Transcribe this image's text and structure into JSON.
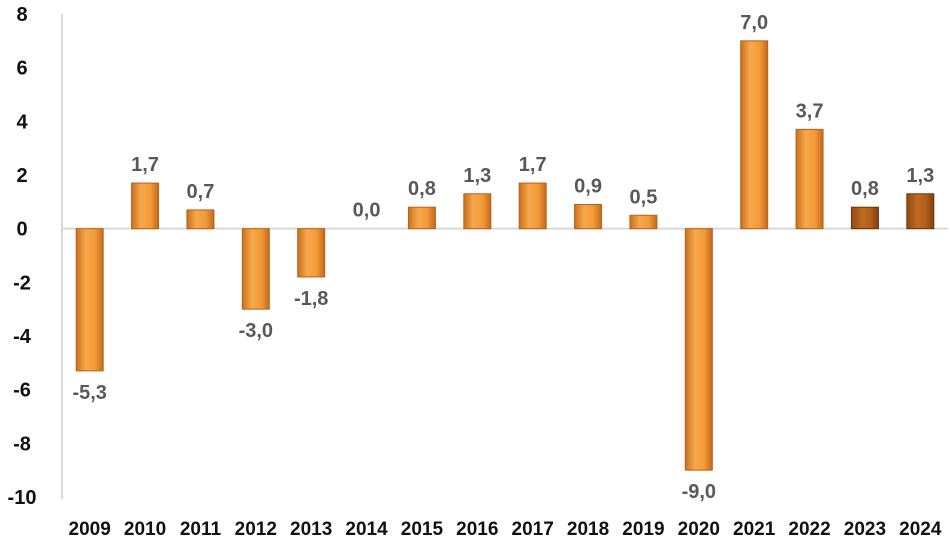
{
  "chart_data": {
    "type": "bar",
    "categories": [
      "2009",
      "2010",
      "2011",
      "2012",
      "2013",
      "2014",
      "2015",
      "2016",
      "2017",
      "2018",
      "2019",
      "2020",
      "2021",
      "2022",
      "2023",
      "2024"
    ],
    "values": [
      -5.3,
      1.7,
      0.7,
      -3.0,
      -1.8,
      0.0,
      0.8,
      1.3,
      1.7,
      0.9,
      0.5,
      -9.0,
      7.0,
      3.7,
      0.8,
      1.3
    ],
    "data_labels": [
      "-5,3",
      "1,7",
      "0,7",
      "-3,0",
      "-1,8",
      "0,0",
      "0,8",
      "1,3",
      "1,7",
      "0,9",
      "0,5",
      "-9,0",
      "7,0",
      "3,7",
      "0,8",
      "1,3"
    ],
    "title": "",
    "xlabel": "",
    "ylabel": "",
    "ylim": [
      -10,
      8
    ],
    "yticks": [
      "8",
      "6",
      "4",
      "2",
      "0",
      "-2",
      "-4",
      "-6",
      "-8",
      "-10"
    ],
    "grid": false,
    "colors": {
      "bar": "#f4a040",
      "bar_dark": "#c8701e",
      "bar_highlight": "#b8601a",
      "axis": "#d9d9d9",
      "text": "#111111",
      "label": "#595959"
    },
    "highlighted_categories": [
      "2023",
      "2024"
    ]
  }
}
